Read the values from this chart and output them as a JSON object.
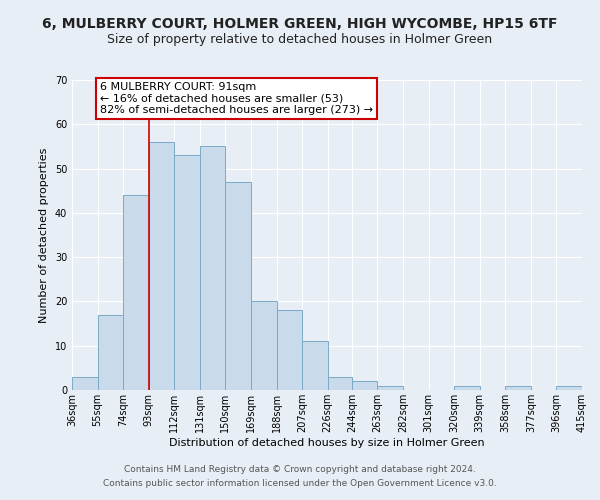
{
  "title": "6, MULBERRY COURT, HOLMER GREEN, HIGH WYCOMBE, HP15 6TF",
  "subtitle": "Size of property relative to detached houses in Holmer Green",
  "xlabel": "Distribution of detached houses by size in Holmer Green",
  "ylabel": "Number of detached properties",
  "bin_edges": [
    36,
    55,
    74,
    93,
    112,
    131,
    150,
    169,
    188,
    207,
    226,
    244,
    263,
    282,
    301,
    320,
    339,
    358,
    377,
    396,
    415
  ],
  "bin_heights": [
    3,
    17,
    44,
    56,
    53,
    55,
    47,
    20,
    18,
    11,
    3,
    2,
    1,
    0,
    0,
    1,
    0,
    1,
    0,
    1
  ],
  "bar_color": "#c9daea",
  "bar_edge_color": "#7aaac8",
  "reference_line_x": 93,
  "reference_line_color": "#cc0000",
  "ylim": [
    0,
    70
  ],
  "yticks": [
    0,
    10,
    20,
    30,
    40,
    50,
    60,
    70
  ],
  "annotation_text": "6 MULBERRY COURT: 91sqm\n← 16% of detached houses are smaller (53)\n82% of semi-detached houses are larger (273) →",
  "annotation_box_facecolor": "#ffffff",
  "annotation_box_edgecolor": "#cc0000",
  "footer_line1": "Contains HM Land Registry data © Crown copyright and database right 2024.",
  "footer_line2": "Contains public sector information licensed under the Open Government Licence v3.0.",
  "background_color": "#e8eef5",
  "plot_bg_color": "#e8eef5",
  "grid_color": "#ffffff",
  "title_fontsize": 10,
  "subtitle_fontsize": 9,
  "axis_label_fontsize": 8,
  "tick_fontsize": 7,
  "annotation_fontsize": 8,
  "footer_fontsize": 6.5
}
